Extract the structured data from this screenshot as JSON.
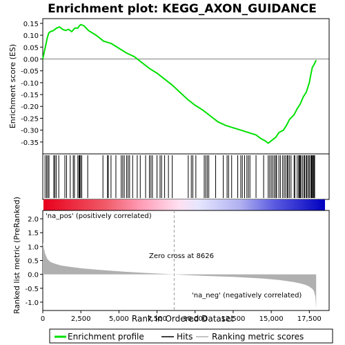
{
  "chart_data": {
    "type": "line",
    "title": "Enrichment plot: KEGG_AXON_GUIDANCE",
    "panels": {
      "es": {
        "ylabel": "Enrichment score (ES)",
        "ylim": [
          -0.4,
          0.17
        ],
        "yticks": [
          0.15,
          0.1,
          0.05,
          0.0,
          -0.05,
          -0.1,
          -0.15,
          -0.2,
          -0.25,
          -0.3,
          -0.35
        ],
        "ytick_labels": [
          "0.15",
          "0.10",
          "0.05",
          "0.00",
          "-0.05",
          "-0.10",
          "-0.15",
          "-0.20",
          "-0.25",
          "-0.30",
          "-0.35"
        ],
        "series_color": "#00e000",
        "x": [
          0,
          100,
          200,
          300,
          400,
          500,
          700,
          900,
          1100,
          1300,
          1500,
          1700,
          1900,
          2100,
          2300,
          2400,
          2500,
          2700,
          3000,
          3500,
          4000,
          4500,
          5000,
          5500,
          6000,
          6500,
          7000,
          7500,
          8000,
          8500,
          9000,
          9500,
          10000,
          10500,
          11000,
          11500,
          12000,
          12500,
          13000,
          13500,
          14000,
          14300,
          14600,
          14800,
          15000,
          15300,
          15500,
          15800,
          16000,
          16200,
          16500,
          16700,
          16900,
          17100,
          17300,
          17500,
          17600,
          17700,
          17800,
          17950
        ],
        "y": [
          0.0,
          0.03,
          0.06,
          0.09,
          0.11,
          0.115,
          0.12,
          0.13,
          0.135,
          0.125,
          0.12,
          0.125,
          0.115,
          0.13,
          0.13,
          0.14,
          0.145,
          0.14,
          0.12,
          0.1,
          0.075,
          0.065,
          0.045,
          0.025,
          0.01,
          -0.015,
          -0.04,
          -0.06,
          -0.085,
          -0.11,
          -0.14,
          -0.17,
          -0.195,
          -0.215,
          -0.24,
          -0.265,
          -0.28,
          -0.29,
          -0.3,
          -0.31,
          -0.32,
          -0.335,
          -0.345,
          -0.355,
          -0.345,
          -0.33,
          -0.31,
          -0.3,
          -0.28,
          -0.255,
          -0.235,
          -0.21,
          -0.19,
          -0.16,
          -0.14,
          -0.1,
          -0.065,
          -0.035,
          -0.025,
          -0.005
        ]
      },
      "hits": {
        "positions": [
          150,
          250,
          330,
          410,
          720,
          790,
          880,
          1050,
          1450,
          1560,
          1800,
          2000,
          2080,
          2300,
          2380,
          2420,
          2480,
          2560,
          2950,
          3950,
          4250,
          4300,
          4480,
          4800,
          5150,
          5250,
          5350,
          5500,
          5600,
          5700,
          5900,
          6200,
          6400,
          6750,
          7000,
          7100,
          7200,
          7500,
          7700,
          7800,
          8000,
          8250,
          8500,
          9550,
          9750,
          9850,
          10050,
          10600,
          10700,
          10800,
          10900,
          11350,
          11850,
          12100,
          12200,
          12400,
          12800,
          13000,
          13100,
          13250,
          13400,
          13500,
          13600,
          14000,
          14500,
          14800,
          14900,
          15000,
          15100,
          15200,
          15300,
          15350,
          15500,
          15600,
          15750,
          15850,
          15950,
          16050,
          16100,
          16200,
          16300,
          16500,
          16550,
          16700,
          16800,
          16850,
          16900,
          16950,
          17050,
          17150,
          17200,
          17300,
          17350,
          17450,
          17500,
          17600,
          17650,
          17700,
          17750,
          17800,
          17850
        ]
      },
      "metric": {
        "ylabel": "Ranked list metric (PreRanked)",
        "ylim": [
          -1.3,
          2.3
        ],
        "yticks": [
          2.0,
          1.5,
          1.0,
          0.5,
          0.0,
          -0.5,
          -1.0
        ],
        "ytick_labels": [
          "2.0",
          "1.5",
          "1.0",
          "0.5",
          "0.0",
          "-0.5",
          "-1.0"
        ],
        "x": [
          0,
          50,
          150,
          300,
          500,
          800,
          1200,
          1800,
          2500,
          3500,
          4500,
          5500,
          6500,
          7500,
          8626,
          9500,
          10500,
          11500,
          12500,
          13500,
          14500,
          15500,
          16000,
          16500,
          17000,
          17300,
          17500,
          17700,
          17800,
          17900,
          17950
        ],
        "values": [
          1.15,
          1.0,
          0.75,
          0.55,
          0.45,
          0.38,
          0.32,
          0.27,
          0.22,
          0.17,
          0.13,
          0.09,
          0.06,
          0.03,
          0.0,
          -0.03,
          -0.05,
          -0.07,
          -0.09,
          -0.12,
          -0.15,
          -0.2,
          -0.24,
          -0.28,
          -0.34,
          -0.39,
          -0.44,
          -0.52,
          -0.6,
          -0.8,
          -1.25
        ],
        "fill_color": "#b0b0b0",
        "zero_cross": 8626,
        "zero_cross_label": "Zero cross at 8626",
        "pos_label": "'na_pos' (positively correlated)",
        "neg_label": "'na_neg' (negatively correlated)",
        "pos_label_color": "#cc0000",
        "neg_label_color": "#0000cc"
      }
    },
    "xlabel": "Rank in Ordered Dataset",
    "xlim": [
      0,
      18800
    ],
    "xticks": [
      0,
      2500,
      5000,
      7500,
      10000,
      12500,
      15000,
      17500
    ],
    "xtick_labels": [
      "0",
      "2,500",
      "5,000",
      "7,500",
      "10,000",
      "12,500",
      "15,000",
      "17,500"
    ],
    "legend": {
      "placement": "bottom",
      "items": [
        {
          "label": "Enrichment profile",
          "color": "#00e000"
        },
        {
          "label": "Hits",
          "color": "#000000"
        },
        {
          "label": "Ranking metric scores",
          "color": "#b0b0b0"
        }
      ]
    }
  }
}
